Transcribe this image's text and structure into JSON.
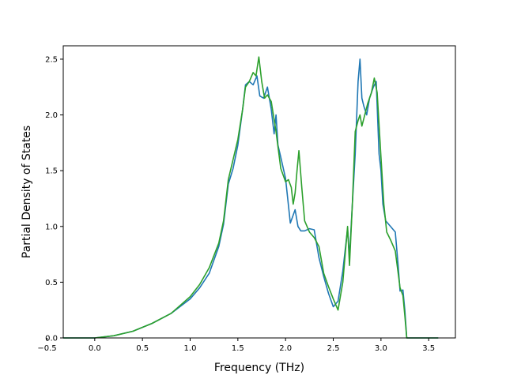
{
  "chart_data": {
    "type": "line",
    "title": "",
    "xlabel": "Frequency (THz)",
    "ylabel": "Partial Density of States",
    "xlim": [
      -0.33,
      3.78
    ],
    "ylim": [
      0.0,
      2.62
    ],
    "xticks": [
      -0.5,
      0.0,
      0.5,
      1.0,
      1.5,
      2.0,
      2.5,
      3.0,
      3.5
    ],
    "xtick_labels": [
      "−0.5",
      "0.0",
      "0.5",
      "1.0",
      "1.5",
      "2.0",
      "2.5",
      "3.0",
      "3.5"
    ],
    "yticks": [
      0.0,
      0.5,
      1.0,
      1.5,
      2.0,
      2.5
    ],
    "ytick_labels": [
      "0.0",
      "0.5",
      "1.0",
      "1.5",
      "2.0",
      "2.5"
    ],
    "grid": false,
    "legend": "none",
    "series": [
      {
        "color": "#1f77b4",
        "x": [
          -0.33,
          0.0,
          0.2,
          0.4,
          0.6,
          0.8,
          1.0,
          1.1,
          1.2,
          1.3,
          1.35,
          1.4,
          1.45,
          1.5,
          1.55,
          1.58,
          1.62,
          1.66,
          1.7,
          1.73,
          1.77,
          1.81,
          1.85,
          1.88,
          1.9,
          1.92,
          1.95,
          2.0,
          2.05,
          2.1,
          2.13,
          2.16,
          2.2,
          2.25,
          2.3,
          2.35,
          2.4,
          2.45,
          2.5,
          2.55,
          2.6,
          2.65,
          2.67,
          2.7,
          2.73,
          2.76,
          2.78,
          2.8,
          2.82,
          2.85,
          2.88,
          2.92,
          2.95,
          2.98,
          3.0,
          3.02,
          3.05,
          3.1,
          3.15,
          3.18,
          3.2,
          3.23,
          3.25,
          3.27,
          3.3,
          3.6
        ],
        "y": [
          0.0,
          0.0,
          0.02,
          0.06,
          0.13,
          0.22,
          0.35,
          0.45,
          0.58,
          0.82,
          1.02,
          1.38,
          1.52,
          1.73,
          2.05,
          2.27,
          2.3,
          2.27,
          2.35,
          2.17,
          2.15,
          2.25,
          2.05,
          1.83,
          2.0,
          1.73,
          1.62,
          1.43,
          1.03,
          1.15,
          1.0,
          0.96,
          0.96,
          0.98,
          0.97,
          0.72,
          0.55,
          0.4,
          0.28,
          0.33,
          0.6,
          0.98,
          0.72,
          1.2,
          1.65,
          2.3,
          2.5,
          2.15,
          2.08,
          2.0,
          2.15,
          2.25,
          2.3,
          1.65,
          1.5,
          1.2,
          1.05,
          1.0,
          0.95,
          0.65,
          0.42,
          0.43,
          0.25,
          0.0,
          0.0,
          0.0
        ]
      },
      {
        "color": "#2ca02c",
        "x": [
          -0.33,
          0.0,
          0.2,
          0.4,
          0.6,
          0.8,
          1.0,
          1.1,
          1.2,
          1.3,
          1.35,
          1.4,
          1.45,
          1.5,
          1.55,
          1.58,
          1.62,
          1.66,
          1.69,
          1.72,
          1.75,
          1.78,
          1.81,
          1.85,
          1.9,
          1.95,
          2.0,
          2.03,
          2.06,
          2.08,
          2.1,
          2.12,
          2.14,
          2.17,
          2.2,
          2.25,
          2.3,
          2.35,
          2.4,
          2.45,
          2.5,
          2.55,
          2.6,
          2.65,
          2.67,
          2.7,
          2.73,
          2.76,
          2.78,
          2.8,
          2.83,
          2.86,
          2.9,
          2.93,
          2.96,
          3.0,
          3.03,
          3.06,
          3.1,
          3.15,
          3.2,
          3.23,
          3.25,
          3.27,
          3.3,
          3.6
        ],
        "y": [
          0.0,
          0.0,
          0.02,
          0.06,
          0.13,
          0.22,
          0.37,
          0.48,
          0.63,
          0.85,
          1.05,
          1.42,
          1.6,
          1.78,
          2.05,
          2.25,
          2.3,
          2.38,
          2.35,
          2.52,
          2.3,
          2.15,
          2.18,
          2.12,
          1.85,
          1.52,
          1.4,
          1.42,
          1.35,
          1.2,
          1.3,
          1.5,
          1.68,
          1.35,
          1.05,
          0.95,
          0.9,
          0.82,
          0.58,
          0.46,
          0.35,
          0.25,
          0.5,
          1.0,
          0.65,
          1.2,
          1.85,
          1.95,
          2.0,
          1.9,
          2.0,
          2.1,
          2.2,
          2.33,
          2.2,
          1.62,
          1.2,
          0.95,
          0.88,
          0.78,
          0.45,
          0.38,
          0.2,
          0.0,
          0.0,
          0.0
        ]
      }
    ]
  }
}
